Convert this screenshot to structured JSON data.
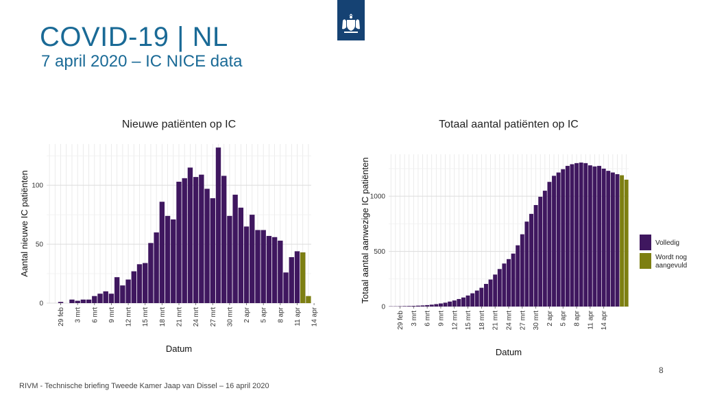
{
  "slide": {
    "title": "COVID-19 | NL",
    "subtitle": "7 april 2020 – IC NICE data",
    "page_number": "8",
    "footer": "RIVM - Technische briefing Tweede Kamer Jaap van Dissel – 16 april 2020"
  },
  "colors": {
    "complete": "#3f175f",
    "pending": "#7d7f12",
    "title": "#1a6a96",
    "grid": "#e6e6e6"
  },
  "legend": {
    "complete": "Volledig",
    "pending_line1": "Wordt nog",
    "pending_line2": "aangevuld"
  },
  "chart_data": [
    {
      "type": "bar",
      "title": "Nieuwe patiënten op IC",
      "xlabel": "Datum",
      "ylabel": "Aantal nieuwe IC patiënten",
      "ylim": [
        0,
        135
      ],
      "yticks": [
        0,
        50,
        100
      ],
      "tick_labels": [
        "29 feb",
        "3 mrt",
        "6 mrt",
        "9 mrt",
        "12 mrt",
        "15 mrt",
        "18 mrt",
        "21 mrt",
        "24 mrt",
        "27 mrt",
        "30 mrt",
        "2 apr",
        "5 apr",
        "8 apr",
        "11 apr",
        "14 apr"
      ],
      "first_tick_index": 2,
      "tick_step": 3,
      "series": [
        {
          "name": "Volledig",
          "values": [
            0,
            0,
            1,
            0,
            3,
            2,
            3,
            3,
            6,
            8,
            10,
            8,
            22,
            15,
            20,
            27,
            33,
            34,
            51,
            60,
            86,
            74,
            71,
            103,
            106,
            115,
            107,
            109,
            97,
            89,
            132,
            108,
            74,
            92,
            81,
            65,
            75,
            62,
            62,
            57,
            56,
            53,
            26,
            39,
            44,
            43,
            0
          ]
        },
        {
          "name": "Wordt nog aangevuld",
          "values": [
            0,
            0,
            0,
            0,
            0,
            0,
            0,
            0,
            0,
            0,
            0,
            0,
            0,
            0,
            0,
            0,
            0,
            0,
            0,
            0,
            0,
            0,
            0,
            0,
            0,
            0,
            0,
            0,
            0,
            0,
            0,
            0,
            0,
            0,
            0,
            0,
            0,
            0,
            0,
            0,
            0,
            0,
            0,
            0,
            0,
            43,
            6
          ]
        }
      ]
    },
    {
      "type": "bar",
      "title": "Totaal aantal patiënten op IC",
      "xlabel": "Datum",
      "ylabel": "Totaal aantal aanwezige IC patiënten",
      "ylim": [
        0,
        1380
      ],
      "yticks": [
        0,
        500,
        1000
      ],
      "tick_labels": [
        "29 feb",
        "3 mrt",
        "6 mrt",
        "9 mrt",
        "12 mrt",
        "15 mrt",
        "18 mrt",
        "21 mrt",
        "24 mrt",
        "27 mrt",
        "30 mrt",
        "2 apr",
        "5 apr",
        "8 apr",
        "11 apr",
        "14 apr"
      ],
      "first_tick_index": 2,
      "tick_step": 3,
      "series": [
        {
          "name": "Volledig",
          "values": [
            2,
            2,
            3,
            4,
            5,
            6,
            8,
            10,
            13,
            17,
            22,
            28,
            35,
            45,
            55,
            68,
            82,
            100,
            120,
            145,
            170,
            205,
            245,
            290,
            340,
            390,
            430,
            480,
            555,
            655,
            770,
            840,
            920,
            995,
            1050,
            1130,
            1185,
            1215,
            1245,
            1275,
            1290,
            1300,
            1305,
            1300,
            1280,
            1270,
            1275,
            1250,
            1230,
            1215,
            1200,
            0,
            0
          ]
        },
        {
          "name": "Wordt nog aangevuld",
          "values": [
            0,
            0,
            0,
            0,
            0,
            0,
            0,
            0,
            0,
            0,
            0,
            0,
            0,
            0,
            0,
            0,
            0,
            0,
            0,
            0,
            0,
            0,
            0,
            0,
            0,
            0,
            0,
            0,
            0,
            0,
            0,
            0,
            0,
            0,
            0,
            0,
            0,
            0,
            0,
            0,
            0,
            0,
            0,
            0,
            0,
            0,
            0,
            0,
            0,
            0,
            0,
            1190,
            1150
          ]
        }
      ]
    }
  ]
}
